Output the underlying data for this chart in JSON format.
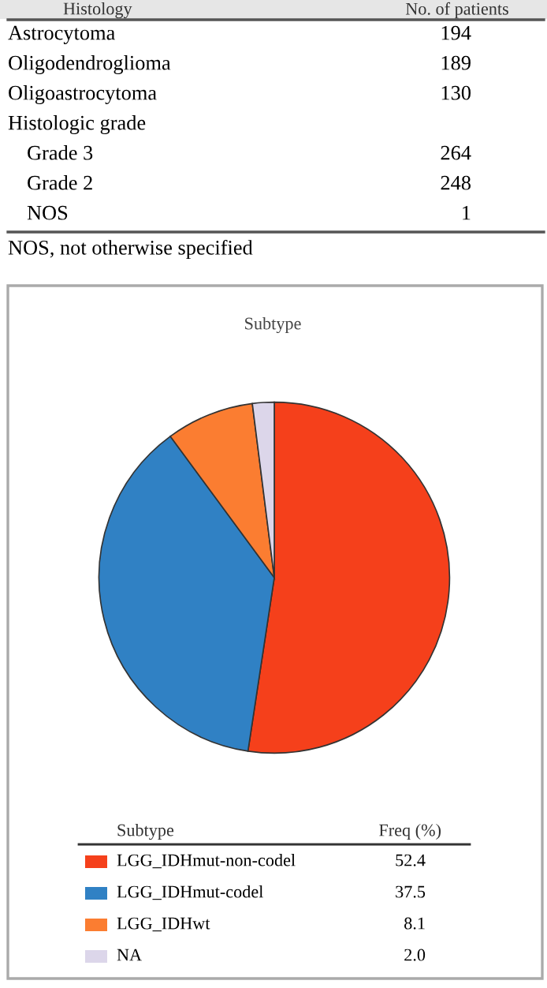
{
  "chart_data": [
    {
      "type": "other",
      "categories": [
        "Astrocytoma",
        "Oligodendroglioma",
        "Oligoastrocytoma",
        "Histologic grade",
        "Grade 3",
        "Grade 2",
        "NOS"
      ],
      "values": [
        194,
        189,
        130,
        null,
        264,
        248,
        1
      ],
      "data_labels": true,
      "annotations": [
        "Histology",
        "No. of patients",
        "NOS, not otherwise specified"
      ]
    },
    {
      "type": "pie",
      "title": "Subtype",
      "legend_title": "Subtype",
      "annotations": [
        "Freq (%)"
      ],
      "legend": "bottom",
      "categories": [
        "LGG_IDHmut-non-codel",
        "LGG_IDHmut-codel",
        "LGG_IDHwt",
        "NA"
      ],
      "values": [
        52.4,
        37.5,
        8.1,
        2.0
      ],
      "value_labels": [
        "52.4",
        "37.5",
        "8.1",
        "2.0"
      ],
      "colors": [
        "#f5401b",
        "#3081c4",
        "#fb7d31",
        "#dcd6ea"
      ]
    }
  ]
}
